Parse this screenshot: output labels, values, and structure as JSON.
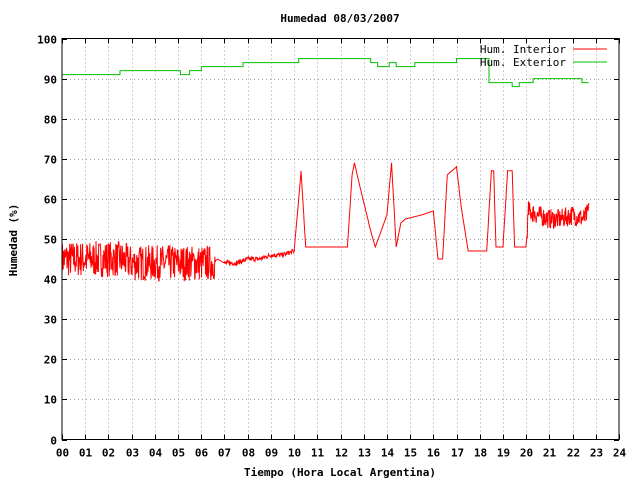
{
  "chart_data": {
    "type": "line",
    "title": "Humedad 08/03/2007",
    "xlabel": "Tiempo (Hora Local Argentina)",
    "ylabel": "Humedad (%)",
    "xlim": [
      0,
      24
    ],
    "ylim": [
      0,
      100
    ],
    "x_ticks": [
      "00",
      "01",
      "02",
      "03",
      "04",
      "05",
      "06",
      "07",
      "08",
      "09",
      "10",
      "11",
      "12",
      "13",
      "14",
      "15",
      "16",
      "17",
      "18",
      "19",
      "20",
      "21",
      "22",
      "23",
      "24"
    ],
    "y_ticks": [
      0,
      10,
      20,
      30,
      40,
      50,
      60,
      70,
      80,
      90,
      100
    ],
    "grid": true,
    "legend_position": "top-right",
    "series": [
      {
        "name": "Hum. Interior",
        "color": "#ff0000",
        "style": "noisy",
        "x": [
          0,
          0.5,
          1,
          1.5,
          2,
          2.5,
          3,
          3.5,
          4,
          4.5,
          5,
          5.5,
          6,
          6.5,
          6.7,
          7,
          7.5,
          8,
          8.5,
          9,
          9.5,
          10,
          10.2,
          10.3,
          10.5,
          10.9,
          11.5,
          12,
          12.3,
          12.5,
          12.6,
          12.8,
          13.3,
          13.5,
          14,
          14.2,
          14.4,
          14.6,
          14.8,
          15.5,
          16,
          16.2,
          16.4,
          16.6,
          17,
          17.2,
          17.5,
          18.3,
          18.5,
          18.6,
          18.7,
          19,
          19.2,
          19.4,
          19.5,
          20,
          20.1,
          20.5,
          21,
          21.5,
          22,
          22.5,
          22.7
        ],
        "y": [
          45,
          45,
          45,
          45,
          45,
          45,
          44,
          44,
          44,
          44,
          44,
          44,
          44,
          44,
          45,
          44,
          44,
          45,
          45,
          46,
          46,
          47,
          60,
          67,
          48,
          48,
          48,
          48,
          48,
          66,
          69,
          64,
          52,
          48,
          56,
          69,
          48,
          54,
          55,
          56,
          57,
          45,
          45,
          66,
          68,
          58,
          47,
          47,
          67,
          67,
          48,
          48,
          67,
          67,
          48,
          48,
          57,
          56,
          55,
          55,
          56,
          55,
          57
        ]
      },
      {
        "name": "Hum. Exterior",
        "color": "#00c000",
        "style": "step",
        "x": [
          0,
          1.6,
          2.5,
          3.8,
          5.1,
          5.5,
          6,
          6.9,
          7.8,
          8.5,
          9.5,
          10.2,
          11,
          12.3,
          13.3,
          13.6,
          13.8,
          14.1,
          14.4,
          15.2,
          16,
          17,
          18,
          18.3,
          18.4,
          19.2,
          19.4,
          19.7,
          20.3,
          21,
          22.2,
          22.4,
          22.7
        ],
        "y": [
          91,
          91,
          92,
          92,
          91,
          92,
          93,
          93,
          94,
          94,
          94,
          95,
          95,
          95,
          94,
          93,
          93,
          94,
          93,
          94,
          94,
          95,
          95,
          95,
          89,
          89,
          88,
          89,
          90,
          90,
          90,
          89,
          89
        ]
      }
    ]
  }
}
